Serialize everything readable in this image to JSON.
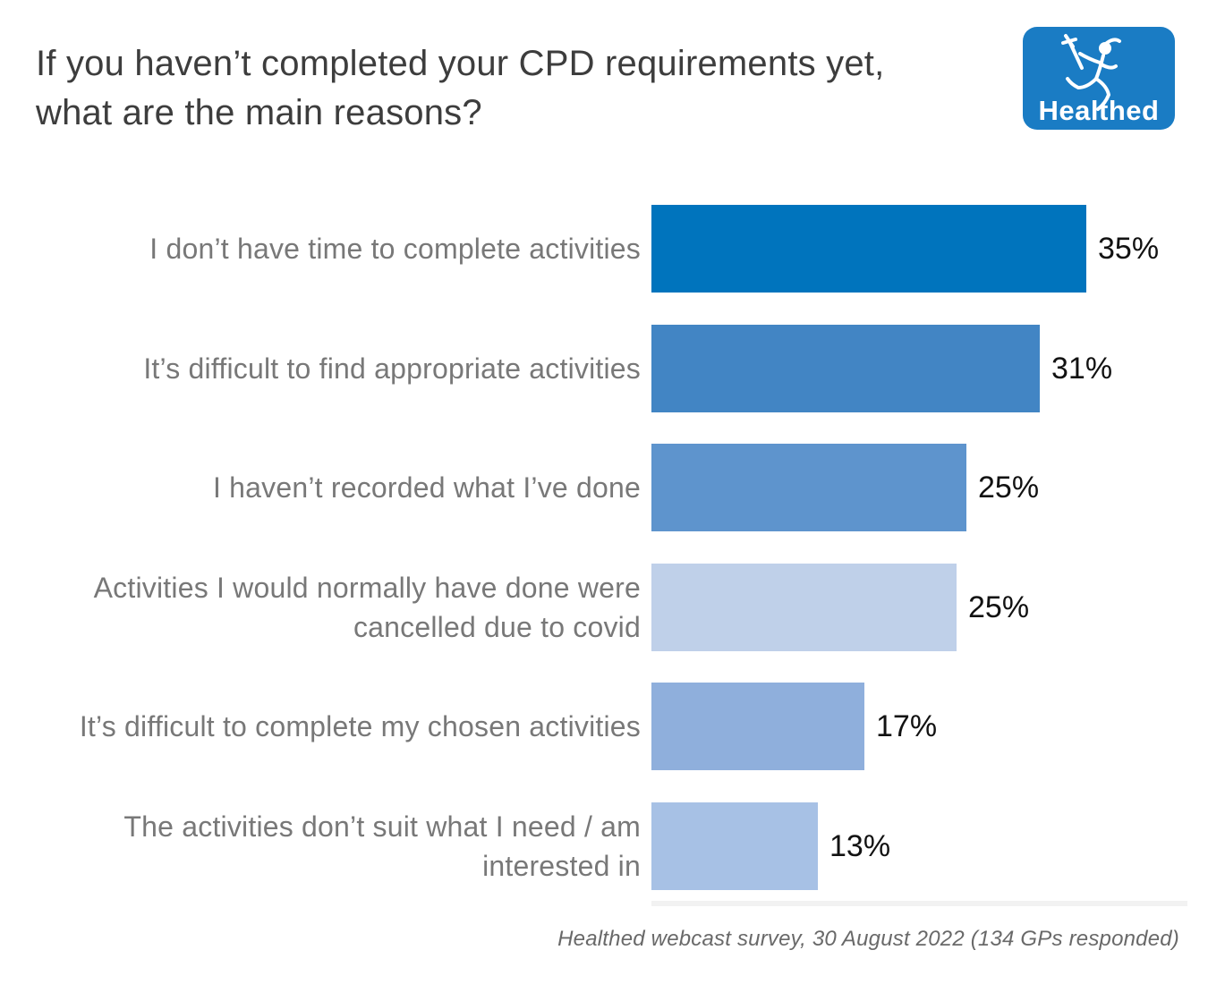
{
  "header": {
    "title": "If you haven’t completed your CPD requirements yet,\nwhat are the main reasons?",
    "logo": {
      "text": "Healthed",
      "bg_color": "#1a7cc4"
    }
  },
  "chart_data": {
    "type": "bar",
    "orientation": "horizontal",
    "title": "If you haven’t completed your CPD requirements yet, what are the main reasons?",
    "categories": [
      "I don’t have time to complete activities",
      "It’s difficult to find appropriate activities",
      "I haven’t recorded what I’ve done",
      "Activities I would normally have done were\ncancelled due to covid",
      "It’s difficult to complete my chosen activities",
      "The activities don’t suit what I need / am\ninterested in"
    ],
    "values": [
      35,
      31,
      25,
      25,
      17,
      13
    ],
    "value_labels": [
      "35%",
      "31%",
      "25%",
      "25%",
      "17%",
      "13%"
    ],
    "exact_values_pct": [
      35.1,
      31.3,
      25.4,
      24.6,
      17.2,
      13.4
    ],
    "bar_colors": [
      "#0074bd",
      "#4285c4",
      "#5e94cd",
      "#bfd0e9",
      "#8fafdc",
      "#a7c1e5"
    ],
    "xlim": [
      0,
      42
    ],
    "grid": false,
    "legend": false,
    "xlabel": "",
    "ylabel": ""
  },
  "footer": {
    "source": "Healthed webcast survey, 30 August 2022 (134 GPs responded)"
  }
}
